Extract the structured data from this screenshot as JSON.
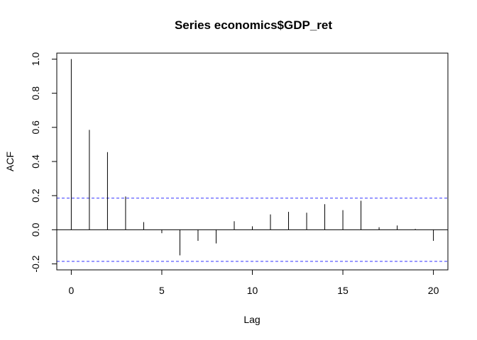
{
  "chart_data": {
    "type": "bar",
    "title": "Series  economics$GDP_ret",
    "xlabel": "Lag",
    "ylabel": "ACF",
    "xlim": [
      -0.8,
      20.8
    ],
    "ylim": [
      -0.235,
      1.035
    ],
    "x_ticks": [
      0,
      5,
      10,
      15,
      20
    ],
    "x_tick_labels": [
      "0",
      "5",
      "10",
      "15",
      "20"
    ],
    "y_ticks": [
      -0.2,
      0.0,
      0.2,
      0.4,
      0.6,
      0.8,
      1.0
    ],
    "y_tick_labels": [
      "-0.2",
      "0.0",
      "0.2",
      "0.4",
      "0.6",
      "0.8",
      "1.0"
    ],
    "grid": false,
    "lags": [
      0,
      1,
      2,
      3,
      4,
      5,
      6,
      7,
      8,
      9,
      10,
      11,
      12,
      13,
      14,
      15,
      16,
      17,
      18,
      19,
      20
    ],
    "acf": [
      1.0,
      0.585,
      0.455,
      0.195,
      0.045,
      -0.02,
      -0.15,
      -0.065,
      -0.08,
      0.05,
      0.02,
      0.09,
      0.105,
      0.1,
      0.15,
      0.115,
      0.17,
      0.015,
      0.025,
      0.005,
      -0.065
    ],
    "confidence_bound": 0.185,
    "colors": {
      "bars": "#000000",
      "confidence": "#3333ff",
      "zero_line": "#000000"
    }
  }
}
